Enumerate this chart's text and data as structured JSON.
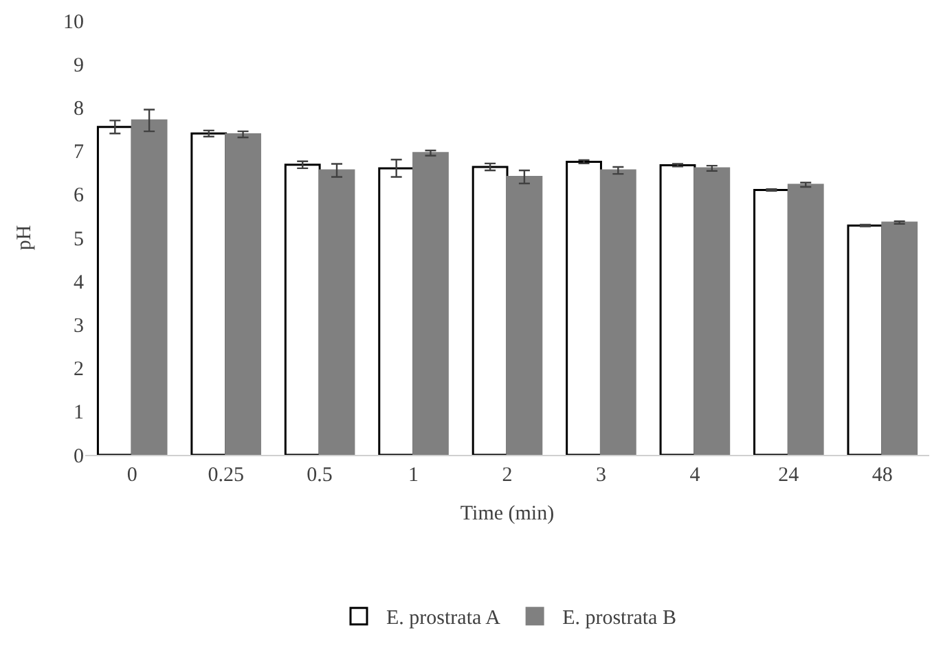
{
  "chart_data": {
    "type": "bar",
    "xlabel": "Time (min)",
    "ylabel": "pH",
    "categories": [
      "0",
      "0.25",
      "0.5",
      "1",
      "2",
      "3",
      "4",
      "24",
      "48"
    ],
    "series": [
      {
        "name": "E. prostrata A",
        "color": "#ffffff",
        "values": [
          7.55,
          7.4,
          6.68,
          6.6,
          6.63,
          6.75,
          6.67,
          6.1,
          5.28
        ],
        "errors": [
          0.15,
          0.07,
          0.08,
          0.2,
          0.08,
          0.04,
          0.03,
          0.02,
          0.02
        ]
      },
      {
        "name": "E. prostrata B",
        "color": "#808080",
        "values": [
          7.7,
          7.38,
          6.55,
          6.95,
          6.4,
          6.55,
          6.6,
          6.22,
          5.35
        ],
        "errors": [
          0.25,
          0.07,
          0.15,
          0.06,
          0.15,
          0.08,
          0.06,
          0.05,
          0.03
        ]
      }
    ],
    "ylim": [
      0,
      10
    ],
    "yticks": [
      0,
      1,
      2,
      3,
      4,
      5,
      6,
      7,
      8,
      9,
      10
    ],
    "grid": false,
    "legend": "bottom"
  }
}
